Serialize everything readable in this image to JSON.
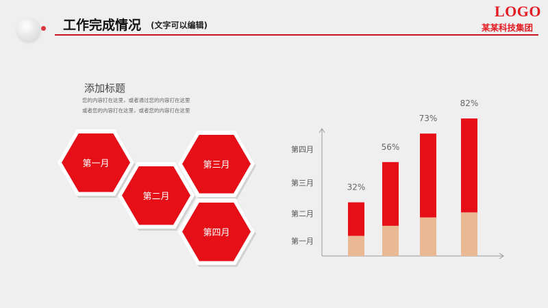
{
  "header": {
    "title": "工作完成情况",
    "subtitle": "(文字可以编辑)",
    "logo": "LOGO",
    "company": "某某科技集团"
  },
  "content": {
    "heading": "添加标题",
    "body_lines": [
      "您的内容打在这里，或者通过您的内容打在这里",
      "或者您的内容打在这里，或者您的内容打在这里"
    ]
  },
  "hexagons": [
    "第一月",
    "第二月",
    "第三月",
    "第四月"
  ],
  "colors": {
    "accent": "#e60f18",
    "bar_top": "#e60f18",
    "bar_bottom": "#ebb894",
    "line": "#c4161c"
  },
  "chart_data": {
    "type": "bar",
    "categories": [
      "第一月",
      "第二月",
      "第三月",
      "第四月"
    ],
    "values": [
      32,
      56,
      73,
      82
    ],
    "value_labels": [
      "32%",
      "56%",
      "73%",
      "82%"
    ],
    "series": [
      {
        "values": [
          12,
          18,
          23,
          26
        ]
      },
      {
        "values": [
          20,
          38,
          50,
          56
        ]
      }
    ],
    "y_tick_labels": [
      "第一月",
      "第二月",
      "第三月",
      "第四月"
    ],
    "ylim": [
      0,
      100
    ],
    "grid": false
  }
}
